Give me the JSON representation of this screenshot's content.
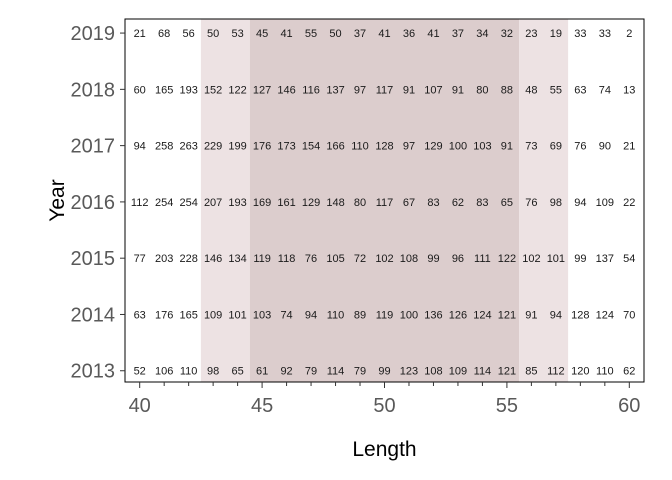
{
  "chart_data": {
    "type": "heatmap",
    "xlabel": "Length",
    "ylabel": "Year",
    "xlim": [
      39.4,
      60.6
    ],
    "ylim": [
      2012.8,
      2019.25
    ],
    "x_ticks": [
      40,
      45,
      50,
      55,
      60
    ],
    "y_ticks": [
      2013,
      2014,
      2015,
      2016,
      2017,
      2018,
      2019
    ],
    "x": [
      40,
      41,
      42,
      43,
      44,
      45,
      46,
      47,
      48,
      49,
      50,
      51,
      52,
      53,
      54,
      55,
      56,
      57,
      58,
      59,
      60
    ],
    "years": [
      2019,
      2018,
      2017,
      2016,
      2015,
      2014,
      2013
    ],
    "values": [
      [
        21,
        68,
        56,
        50,
        53,
        45,
        41,
        55,
        50,
        37,
        41,
        36,
        41,
        37,
        34,
        32,
        23,
        19,
        33,
        33,
        2
      ],
      [
        60,
        165,
        193,
        152,
        122,
        127,
        146,
        116,
        137,
        97,
        117,
        91,
        107,
        91,
        80,
        88,
        48,
        55,
        63,
        74,
        13
      ],
      [
        94,
        258,
        263,
        229,
        199,
        176,
        173,
        154,
        166,
        110,
        128,
        97,
        129,
        100,
        103,
        91,
        73,
        69,
        76,
        90,
        21
      ],
      [
        112,
        254,
        254,
        207,
        193,
        169,
        161,
        129,
        148,
        80,
        117,
        67,
        83,
        62,
        83,
        65,
        76,
        98,
        94,
        109,
        22
      ],
      [
        77,
        203,
        228,
        146,
        134,
        119,
        118,
        76,
        105,
        72,
        102,
        108,
        99,
        96,
        111,
        122,
        102,
        101,
        99,
        137,
        54
      ],
      [
        63,
        176,
        165,
        109,
        101,
        103,
        74,
        94,
        110,
        89,
        119,
        100,
        136,
        126,
        124,
        121,
        91,
        94,
        128,
        124,
        70
      ],
      [
        52,
        106,
        110,
        98,
        65,
        61,
        92,
        79,
        114,
        79,
        99,
        123,
        108,
        109,
        114,
        121,
        85,
        112,
        120,
        110,
        62
      ]
    ],
    "shaded_bands": [
      {
        "x_from": 42.5,
        "x_to": 44.5,
        "color": "#ede2e3"
      },
      {
        "x_from": 44.5,
        "x_to": 55.5,
        "color": "#dccdcd"
      },
      {
        "x_from": 55.5,
        "x_to": 57.5,
        "color": "#ede2e3"
      }
    ],
    "grid": false,
    "legend": "none"
  }
}
